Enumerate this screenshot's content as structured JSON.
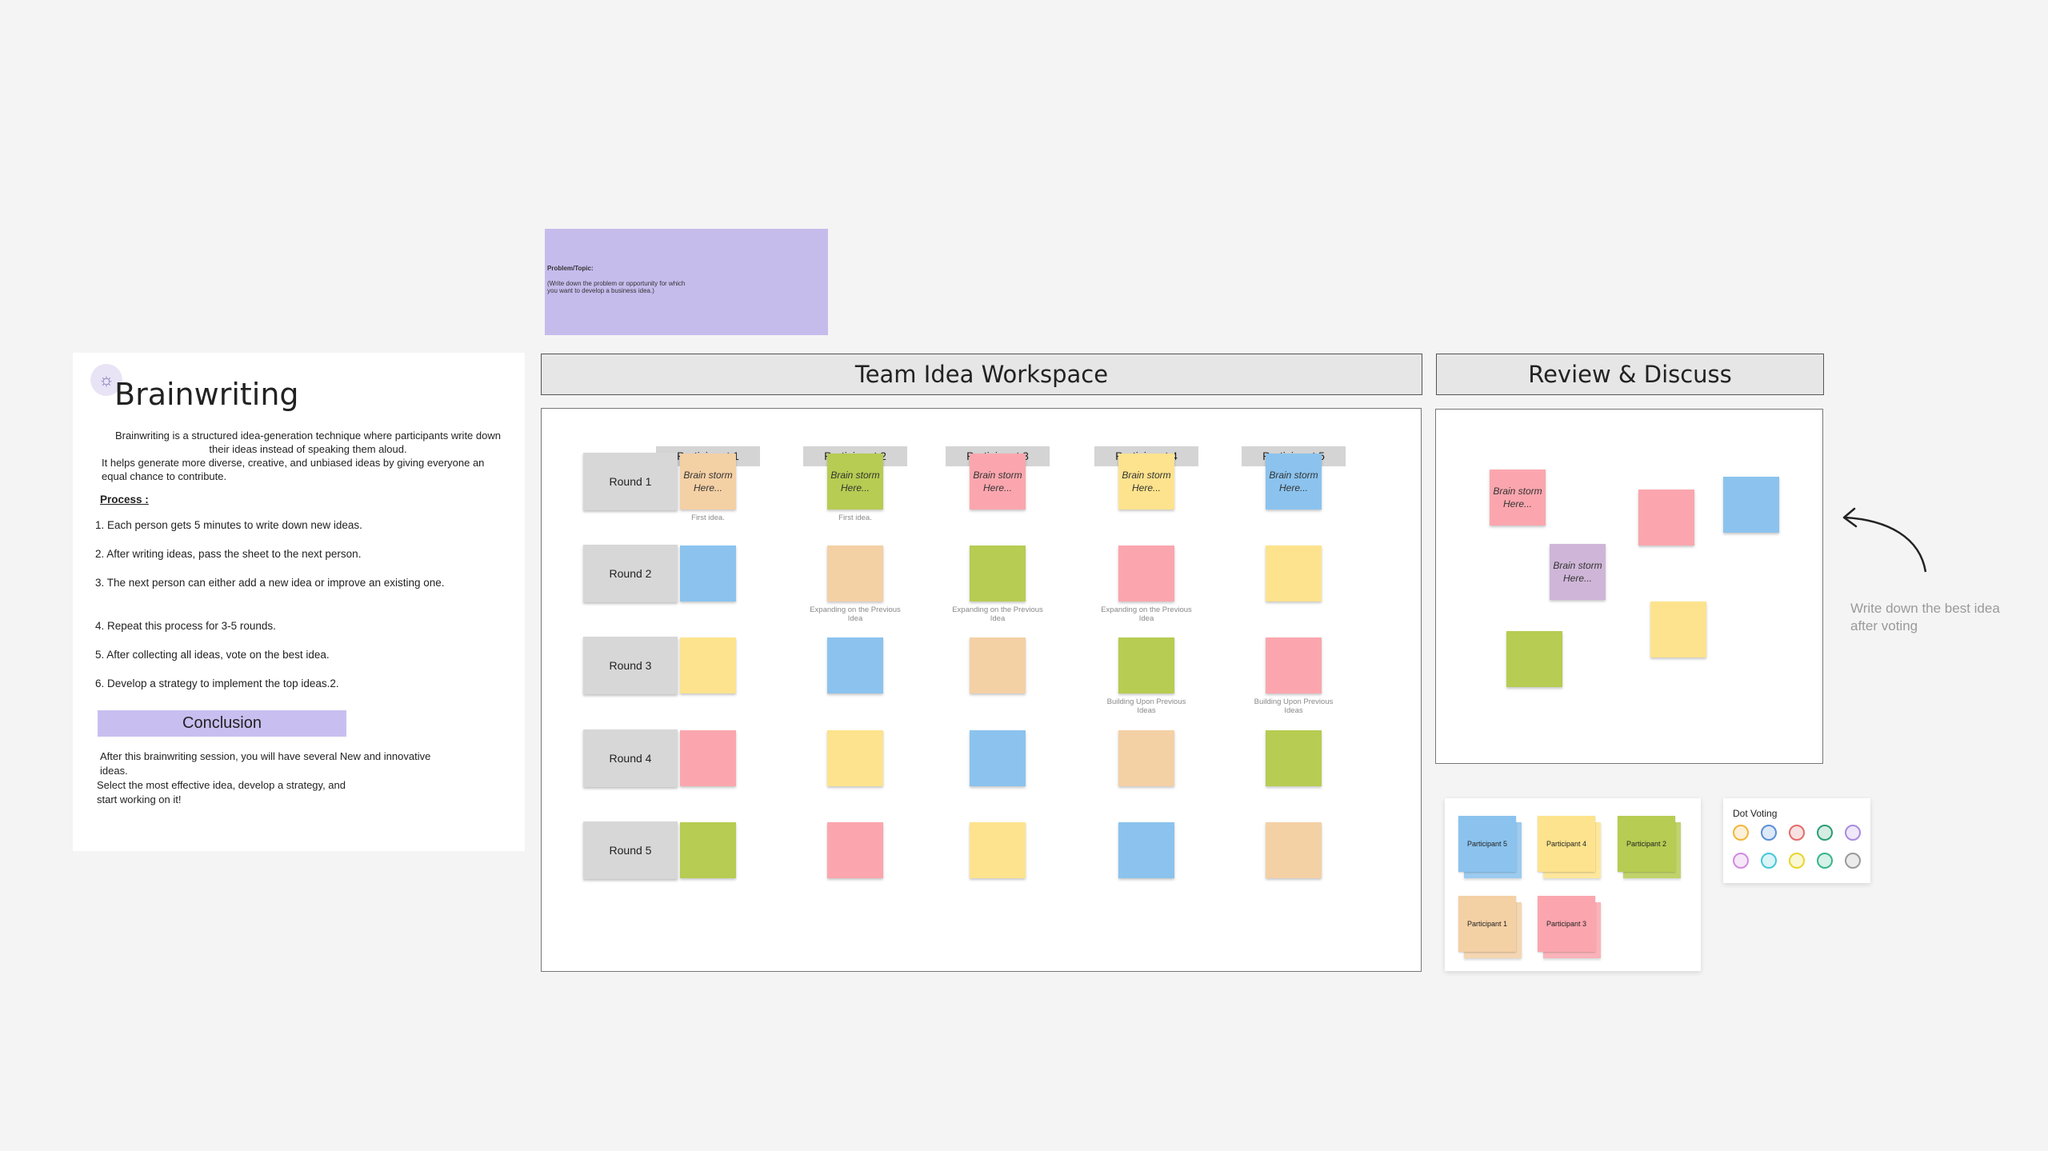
{
  "intro": {
    "title": "Brainwriting",
    "icon": "lightbulb-icon",
    "desc_line1": "Brainwriting is a structured idea-generation technique where participants write down",
    "desc_line2": "their ideas instead of speaking them aloud.",
    "desc_line3": "It helps generate more diverse, creative, and unbiased ideas by giving everyone an equal chance to contribute.",
    "process_label": "Process :",
    "steps": [
      "1. Each person gets 5 minutes to write down new ideas.",
      "2. After writing ideas, pass the sheet to the next person.",
      "3. The next person can either add a new idea or improve an existing one.",
      "4. Repeat this process for 3-5 rounds.",
      "5. After collecting all ideas, vote on the best idea.",
      "6. Develop a strategy to implement the top ideas.2."
    ],
    "conclusion_label": "Conclusion",
    "conclusion_text1": "After this brainwriting session, you will have several New and innovative ideas.",
    "conclusion_text2": "Select the most effective idea, develop a strategy, and",
    "conclusion_text3": "start working on it!"
  },
  "problem": {
    "label": "Problem/Topic:",
    "hint": "(Write down the problem or opportunity for which you want to develop a business idea.)"
  },
  "workspace": {
    "title": "Team Idea Workspace",
    "participants": [
      "Participant 1",
      "Participant 2",
      "Participant 3",
      "Participant 4",
      "Participant 5"
    ],
    "rounds": [
      "Round 1",
      "Round 2",
      "Round 3",
      "Round 4",
      "Round 5"
    ],
    "note_text": "Brain storm Here...",
    "captions": {
      "first": "First idea.",
      "expanding": "Expanding on the Previous Idea",
      "building": "Building Upon Previous Ideas"
    }
  },
  "review": {
    "title": "Review & Discuss",
    "hint": "Write down the best idea after voting",
    "note_text": "Brain storm Here..."
  },
  "stacks": {
    "labels": [
      "Participant 5",
      "Participant 4",
      "Participant 2",
      "Participant 1",
      "Participant 3"
    ]
  },
  "dot_voting": {
    "title": "Dot Voting",
    "colors": [
      "#f2b63a",
      "#5b8fd6",
      "#e36b6b",
      "#2b9e75",
      "#a98be0",
      "#d18ae0",
      "#45c7d8",
      "#e8d52c",
      "#35b58a",
      "#9a9a9a"
    ]
  },
  "colors": {
    "orange": "#f4d0a5",
    "green": "#b6cc52",
    "pink": "#fba6ae",
    "yellow": "#fde38d",
    "blue": "#8bc3ee",
    "purple": "#cfb6d8"
  }
}
